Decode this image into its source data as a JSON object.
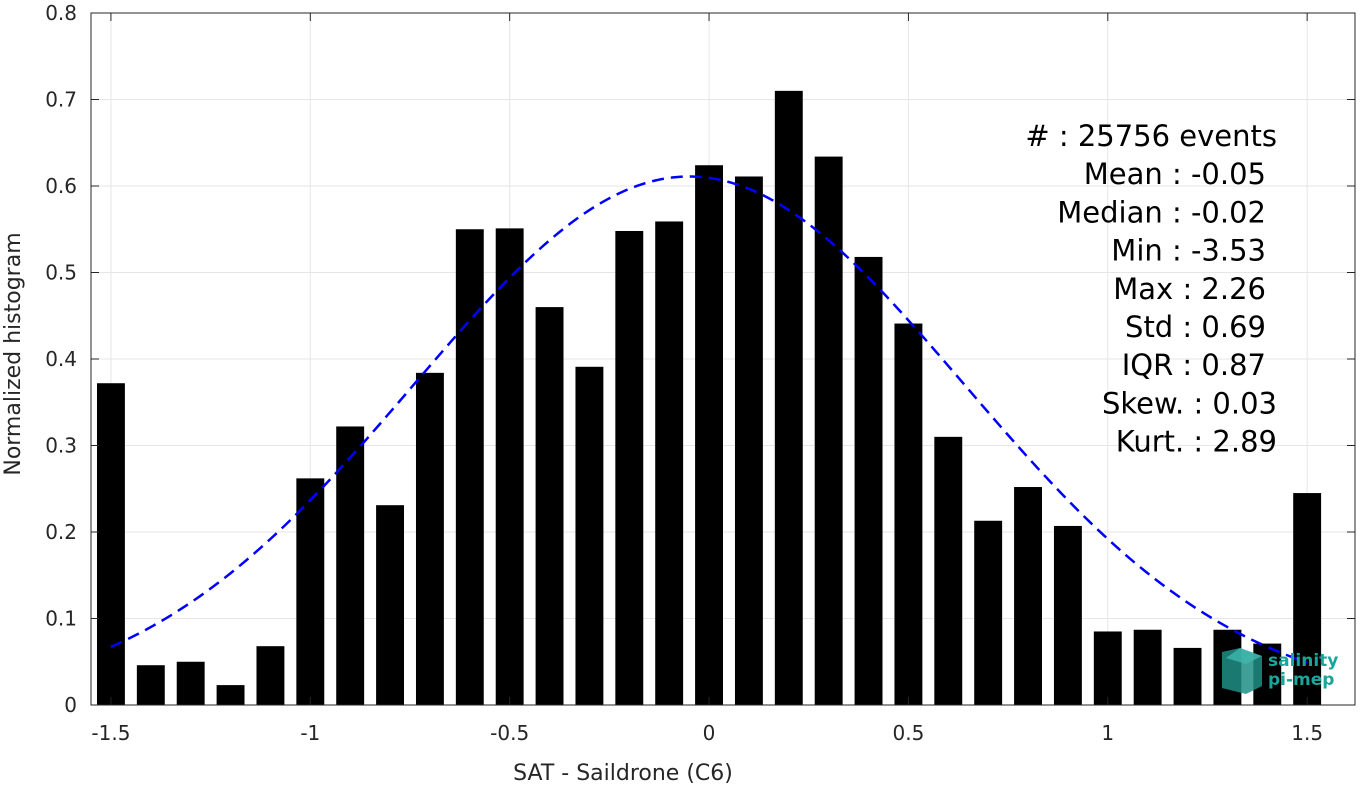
{
  "chart_data": {
    "type": "bar",
    "xlabel": "SAT - Saildrone (C6)",
    "ylabel": "Normalized histogram",
    "xlim": [
      -1.55,
      1.62
    ],
    "ylim": [
      0,
      0.8
    ],
    "x_ticks": [
      -1.5,
      -1,
      -0.5,
      0,
      0.5,
      1,
      1.5
    ],
    "x_tick_labels": [
      "-1.5",
      "-1",
      "-0.5",
      "0",
      "0.5",
      "1",
      "1.5"
    ],
    "y_ticks": [
      0,
      0.1,
      0.2,
      0.3,
      0.4,
      0.5,
      0.6,
      0.7,
      0.8
    ],
    "y_tick_labels": [
      "0",
      "0.1",
      "0.2",
      "0.3",
      "0.4",
      "0.5",
      "0.6",
      "0.7",
      "0.8"
    ],
    "grid": true,
    "bar_width": 0.07,
    "x": [
      -1.5,
      -1.4,
      -1.3,
      -1.2,
      -1.1,
      -1.0,
      -0.9,
      -0.8,
      -0.7,
      -0.6,
      -0.5,
      -0.4,
      -0.3,
      -0.2,
      -0.1,
      0.0,
      0.1,
      0.2,
      0.3,
      0.4,
      0.5,
      0.6,
      0.7,
      0.8,
      0.9,
      1.0,
      1.1,
      1.2,
      1.3,
      1.4,
      1.5
    ],
    "values": [
      0.372,
      0.046,
      0.05,
      0.023,
      0.068,
      0.262,
      0.322,
      0.231,
      0.384,
      0.55,
      0.551,
      0.46,
      0.391,
      0.548,
      0.559,
      0.624,
      0.611,
      0.71,
      0.634,
      0.518,
      0.441,
      0.31,
      0.213,
      0.252,
      0.207,
      0.085,
      0.087,
      0.066,
      0.087,
      0.071,
      0.245
    ],
    "bar_color": "#000000",
    "fit_curve": {
      "style": "dashed",
      "color": "#0000ff",
      "mean": -0.05,
      "std": 0.69,
      "peak": 0.611,
      "x_range": [
        -1.5,
        1.5
      ]
    },
    "stats_lines": [
      "#  : 25756 events",
      "Mean : -0.05",
      "Median : -0.02",
      "Min : -3.53",
      "Max : 2.26",
      "Std : 0.69",
      "IQR : 0.87",
      "Skew. : 0.03",
      "Kurt. : 2.89"
    ],
    "logo_lines": [
      "salinity",
      "pi-mep"
    ]
  }
}
